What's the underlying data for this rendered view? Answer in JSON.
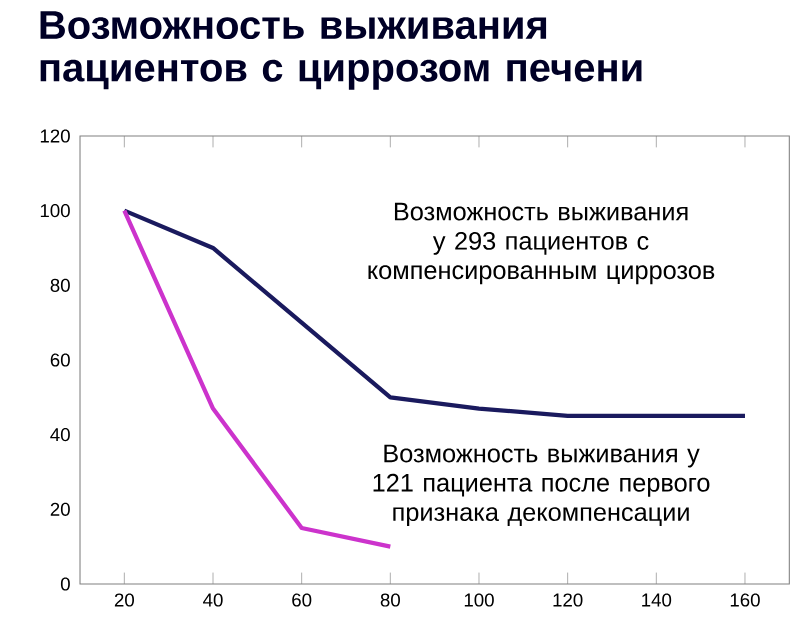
{
  "chart_data": {
    "type": "line",
    "title": "Возможность выживания пациентов с циррозом печени",
    "categories": [
      "20",
      "40",
      "60",
      "80",
      "100",
      "120",
      "140",
      "160"
    ],
    "series": [
      {
        "name": "Возможность выживания у 293 пациентов с компенсированным циррозов",
        "color": "#1a1a5e",
        "values": [
          100,
          90,
          70,
          50,
          47,
          45,
          45,
          45
        ]
      },
      {
        "name": "Возможность выживания у 121 пациента после первого признака декомпенсации",
        "color": "#cc33cc",
        "values": [
          100,
          47,
          15,
          10,
          null,
          null,
          null,
          null
        ]
      }
    ],
    "ylim": [
      0,
      120
    ],
    "yticks": [
      0,
      20,
      40,
      60,
      80,
      100,
      120
    ],
    "grid": false,
    "legend": false,
    "marker": "none",
    "line_style": "solid"
  }
}
